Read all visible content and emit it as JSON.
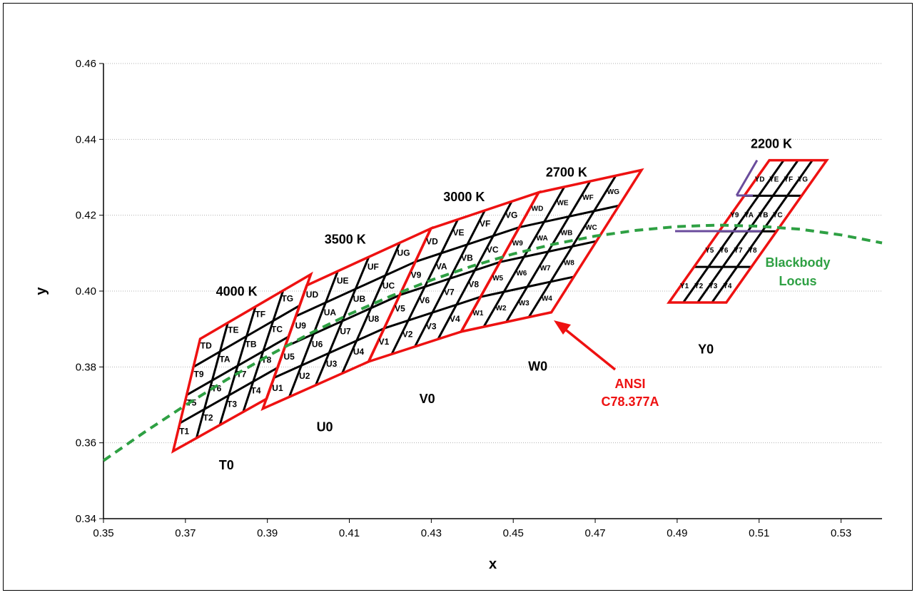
{
  "chart_data": {
    "type": "line",
    "xlabel": "x",
    "ylabel": "y",
    "xlim": [
      0.35,
      0.54
    ],
    "ylim": [
      0.34,
      0.46
    ],
    "xticks": [
      "0.35",
      "0.37",
      "0.39",
      "0.41",
      "0.43",
      "0.45",
      "0.47",
      "0.49",
      "0.51",
      "0.53"
    ],
    "yticks": [
      "0.34",
      "0.36",
      "0.38",
      "0.40",
      "0.42",
      "0.44",
      "0.46"
    ],
    "grid": "horizontal",
    "quadrangles": [
      {
        "cct": "4000 K",
        "corners": [
          [
            0.367,
            0.3578
          ],
          [
            0.3898,
            0.3716
          ],
          [
            0.4006,
            0.4044
          ],
          [
            0.3736,
            0.3874
          ]
        ],
        "cells": [
          "T1",
          "T2",
          "T3",
          "T4",
          "T5",
          "T6",
          "T7",
          "T8",
          "T9",
          "TA",
          "TB",
          "TC",
          "TD",
          "TE",
          "TF",
          "TG"
        ]
      },
      {
        "cct": "3500 K",
        "corners": [
          [
            0.3889,
            0.369
          ],
          [
            0.4147,
            0.3814
          ],
          [
            0.4299,
            0.4165
          ],
          [
            0.3996,
            0.4015
          ]
        ],
        "cells": [
          "U1",
          "U2",
          "U3",
          "U4",
          "U5",
          "U6",
          "U7",
          "U8",
          "U9",
          "UA",
          "UB",
          "UC",
          "UD",
          "UE",
          "UF",
          "UG"
        ]
      },
      {
        "cct": "3000 K",
        "corners": [
          [
            0.4147,
            0.3814
          ],
          [
            0.4373,
            0.3893
          ],
          [
            0.4562,
            0.426
          ],
          [
            0.4299,
            0.4165
          ]
        ],
        "cells": [
          "V1",
          "V2",
          "V3",
          "V4",
          "V5",
          "V6",
          "V7",
          "V8",
          "V9",
          "VA",
          "VB",
          "VC",
          "VD",
          "VE",
          "VF",
          "VG"
        ]
      },
      {
        "cct": "2700 K",
        "corners": [
          [
            0.4373,
            0.3893
          ],
          [
            0.4593,
            0.3944
          ],
          [
            0.4813,
            0.4319
          ],
          [
            0.4562,
            0.426
          ]
        ],
        "cells": [
          "W1",
          "W2",
          "W3",
          "W4",
          "W5",
          "W6",
          "W7",
          "W8",
          "W9",
          "WA",
          "WB",
          "WC",
          "WD",
          "WE",
          "WF",
          "WG"
        ]
      },
      {
        "cct": "2200 K",
        "corners": [
          [
            0.488,
            0.397
          ],
          [
            0.502,
            0.397
          ],
          [
            0.5265,
            0.4345
          ],
          [
            0.5125,
            0.4345
          ]
        ],
        "cells": [
          "Y1",
          "Y2",
          "Y3",
          "Y4",
          "Y5",
          "Y6",
          "Y7",
          "Y8",
          "Y9",
          "YA",
          "YB",
          "YC",
          "YD",
          "YE",
          "YF",
          "YG"
        ]
      }
    ],
    "series": [
      {
        "name": "Blackbody Locus",
        "x": [
          0.35,
          0.36,
          0.37,
          0.38,
          0.39,
          0.4,
          0.41,
          0.42,
          0.43,
          0.44,
          0.45,
          0.46,
          0.47,
          0.48,
          0.49,
          0.5,
          0.51,
          0.52,
          0.53,
          0.54
        ],
        "y": [
          0.3553,
          0.3628,
          0.3699,
          0.3766,
          0.3828,
          0.3886,
          0.3939,
          0.3986,
          0.4029,
          0.4066,
          0.4098,
          0.4124,
          0.4145,
          0.416,
          0.417,
          0.4174,
          0.4171,
          0.4163,
          0.4148,
          0.4127
        ]
      }
    ],
    "annotations": {
      "zones": [
        {
          "text": "T0",
          "x": 0.38,
          "y": 0.353
        },
        {
          "text": "U0",
          "x": 0.404,
          "y": 0.363
        },
        {
          "text": "V0",
          "x": 0.429,
          "y": 0.3705
        },
        {
          "text": "W0",
          "x": 0.456,
          "y": 0.379
        },
        {
          "text": "Y0",
          "x": 0.497,
          "y": 0.3835
        }
      ],
      "cct_labels": [
        {
          "text": "4000 K",
          "x": 0.3825,
          "y": 0.3988
        },
        {
          "text": "3500 K",
          "x": 0.409,
          "y": 0.4125
        },
        {
          "text": "3000 K",
          "x": 0.438,
          "y": 0.4237
        },
        {
          "text": "2700 K",
          "x": 0.463,
          "y": 0.4302
        },
        {
          "text": "2200 K",
          "x": 0.513,
          "y": 0.4377
        }
      ],
      "ansi_label": [
        "ANSI",
        "C78.377A"
      ],
      "locus_label": [
        "Blackbody",
        "Locus"
      ]
    },
    "colors": {
      "quad_border": "#ee1111",
      "grid_line": "#000000",
      "locus": "#2ea043",
      "accent_line": "#6a4c9c",
      "axis": "#000000",
      "gridline": "#b0b0b0"
    }
  }
}
